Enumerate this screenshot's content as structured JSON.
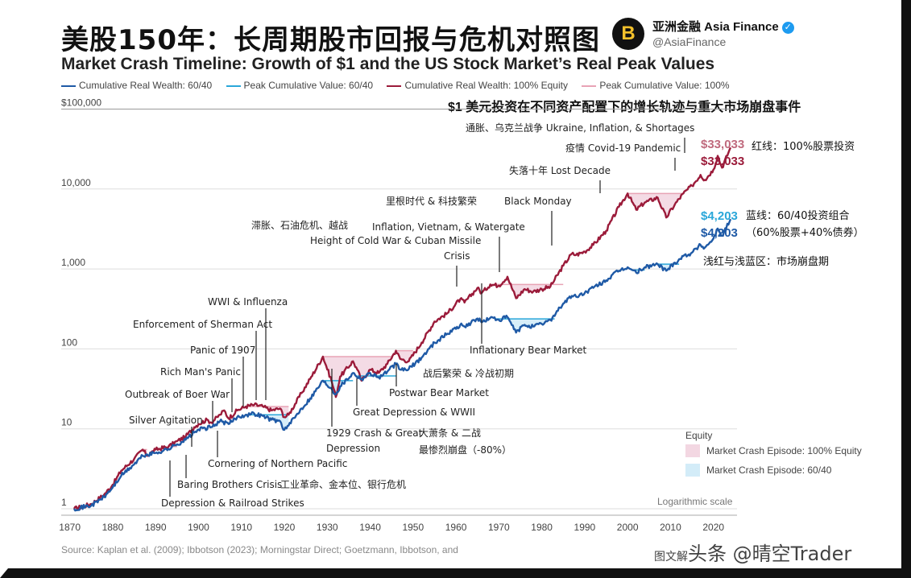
{
  "header": {
    "cn_title": "美股150年：长周期股市回报与危机对照图",
    "en_title": "Market Crash Timeline: Growth of $1 and the US Stock Market’s Real Peak Values",
    "subtitle": "$1 美元投资在不同资产配置下的增长轨迹与重大市场崩盘事件",
    "brand_name": "亚洲金融 Asia Finance",
    "brand_handle": "@AsiaFinance",
    "verified_icon": "verified-check-icon",
    "logo_letter": "B"
  },
  "legend": {
    "items": [
      {
        "label": "Cumulative Real Wealth: 60/40",
        "color": "#1f5aa6"
      },
      {
        "label": "Peak Cumulative Value: 60/40",
        "color": "#2aa7d9"
      },
      {
        "label": "Cumulative Real Wealth: 100% Equity",
        "color": "#9b1b3a"
      },
      {
        "label": "Peak Cumulative Value: 100%",
        "color": "#e8a3b5"
      }
    ]
  },
  "chart_data": {
    "type": "line",
    "y_scale": "log",
    "ylim": [
      1,
      100000
    ],
    "xlim": [
      1868,
      2025
    ],
    "y_ticks": [
      "$100,000",
      "10,000",
      "1,000",
      "100",
      "10",
      "1"
    ],
    "x_ticks": [
      "1870",
      "1880",
      "1890",
      "1900",
      "1910",
      "1920",
      "1930",
      "1940",
      "1950",
      "1960",
      "1970",
      "1980",
      "1990",
      "2000",
      "2010",
      "2020"
    ],
    "scale_note": "Logarithmic scale",
    "series": [
      {
        "name": "Cumulative Real Wealth: 100% Equity",
        "color": "#9b1b3a",
        "points": [
          [
            1871,
            1
          ],
          [
            1875,
            1.15
          ],
          [
            1878,
            1.5
          ],
          [
            1880,
            2.0
          ],
          [
            1882,
            3.0
          ],
          [
            1885,
            4.2
          ],
          [
            1887,
            5.5
          ],
          [
            1888,
            4.6
          ],
          [
            1890,
            5.5
          ],
          [
            1893,
            6.0
          ],
          [
            1895,
            7.0
          ],
          [
            1897,
            8.0
          ],
          [
            1899,
            10.5
          ],
          [
            1900,
            11.5
          ],
          [
            1902,
            13
          ],
          [
            1903,
            12
          ],
          [
            1905,
            15
          ],
          [
            1906,
            17
          ],
          [
            1907,
            13.5
          ],
          [
            1909,
            17
          ],
          [
            1911,
            19
          ],
          [
            1913,
            20
          ],
          [
            1915,
            19
          ],
          [
            1917,
            17
          ],
          [
            1919,
            18
          ],
          [
            1920,
            14
          ],
          [
            1921,
            15
          ],
          [
            1924,
            28
          ],
          [
            1926,
            42
          ],
          [
            1929,
            80
          ],
          [
            1931,
            40
          ],
          [
            1932,
            25
          ],
          [
            1933,
            45
          ],
          [
            1936,
            70
          ],
          [
            1937,
            55
          ],
          [
            1938,
            40
          ],
          [
            1940,
            55
          ],
          [
            1942,
            50
          ],
          [
            1944,
            65
          ],
          [
            1946,
            95
          ],
          [
            1947,
            75
          ],
          [
            1949,
            70
          ],
          [
            1952,
            120
          ],
          [
            1955,
            220
          ],
          [
            1958,
            280
          ],
          [
            1961,
            420
          ],
          [
            1962,
            380
          ],
          [
            1965,
            580
          ],
          [
            1966,
            500
          ],
          [
            1968,
            640
          ],
          [
            1970,
            620
          ],
          [
            1972,
            800
          ],
          [
            1974,
            430
          ],
          [
            1976,
            560
          ],
          [
            1978,
            520
          ],
          [
            1980,
            560
          ],
          [
            1982,
            600
          ],
          [
            1985,
            1100
          ],
          [
            1987,
            1550
          ],
          [
            1988,
            1500
          ],
          [
            1990,
            1650
          ],
          [
            1992,
            2000
          ],
          [
            1995,
            3000
          ],
          [
            1998,
            6000
          ],
          [
            2000,
            8800
          ],
          [
            2002,
            5500
          ],
          [
            2004,
            6800
          ],
          [
            2007,
            7800
          ],
          [
            2009,
            4400
          ],
          [
            2011,
            6400
          ],
          [
            2013,
            8800
          ],
          [
            2015,
            11000
          ],
          [
            2017,
            15000
          ],
          [
            2018,
            13000
          ],
          [
            2020,
            17500
          ],
          [
            2021,
            26000
          ],
          [
            2022,
            18500
          ],
          [
            2024,
            33033
          ]
        ]
      },
      {
        "name": "Cumulative Real Wealth: 60/40",
        "color": "#1f5aa6",
        "points": [
          [
            1871,
            1
          ],
          [
            1875,
            1.1
          ],
          [
            1878,
            1.4
          ],
          [
            1880,
            1.85
          ],
          [
            1882,
            2.6
          ],
          [
            1885,
            3.6
          ],
          [
            1887,
            4.6
          ],
          [
            1890,
            5.0
          ],
          [
            1893,
            5.6
          ],
          [
            1895,
            6.4
          ],
          [
            1897,
            7.3
          ],
          [
            1899,
            9.0
          ],
          [
            1900,
            9.8
          ],
          [
            1903,
            10.5
          ],
          [
            1905,
            12.5
          ],
          [
            1907,
            11.5
          ],
          [
            1909,
            14
          ],
          [
            1911,
            15
          ],
          [
            1913,
            15.5
          ],
          [
            1915,
            14.5
          ],
          [
            1917,
            13
          ],
          [
            1919,
            12.5
          ],
          [
            1920,
            9.7
          ],
          [
            1921,
            11
          ],
          [
            1924,
            18
          ],
          [
            1926,
            24
          ],
          [
            1929,
            40
          ],
          [
            1931,
            32
          ],
          [
            1932,
            27
          ],
          [
            1933,
            34
          ],
          [
            1936,
            50
          ],
          [
            1938,
            42
          ],
          [
            1940,
            50
          ],
          [
            1942,
            44
          ],
          [
            1944,
            52
          ],
          [
            1946,
            65
          ],
          [
            1947,
            55
          ],
          [
            1949,
            56
          ],
          [
            1952,
            78
          ],
          [
            1955,
            120
          ],
          [
            1958,
            155
          ],
          [
            1961,
            200
          ],
          [
            1962,
            190
          ],
          [
            1965,
            240
          ],
          [
            1966,
            215
          ],
          [
            1968,
            245
          ],
          [
            1970,
            230
          ],
          [
            1972,
            250
          ],
          [
            1974,
            160
          ],
          [
            1976,
            200
          ],
          [
            1978,
            190
          ],
          [
            1980,
            205
          ],
          [
            1982,
            230
          ],
          [
            1985,
            370
          ],
          [
            1987,
            460
          ],
          [
            1988,
            450
          ],
          [
            1990,
            500
          ],
          [
            1992,
            580
          ],
          [
            1995,
            720
          ],
          [
            1998,
            950
          ],
          [
            2000,
            1050
          ],
          [
            2002,
            900
          ],
          [
            2004,
            1050
          ],
          [
            2007,
            1150
          ],
          [
            2009,
            950
          ],
          [
            2011,
            1200
          ],
          [
            2013,
            1450
          ],
          [
            2015,
            1600
          ],
          [
            2017,
            2000
          ],
          [
            2018,
            1850
          ],
          [
            2020,
            2400
          ],
          [
            2021,
            3200
          ],
          [
            2022,
            2600
          ],
          [
            2024,
            4203
          ]
        ]
      }
    ],
    "crash_episodes_equity": [
      [
        1887,
        1888
      ],
      [
        1893,
        1895
      ],
      [
        1907,
        1908
      ],
      [
        1911,
        1921
      ],
      [
        1929,
        1945
      ],
      [
        1946,
        1950
      ],
      [
        1968,
        1985
      ],
      [
        2000,
        2013
      ]
    ],
    "crash_episodes_6040": [
      [
        1911,
        1921
      ],
      [
        1929,
        1936
      ],
      [
        1937,
        1946
      ],
      [
        1969,
        1983
      ],
      [
        2001,
        2004
      ],
      [
        2007,
        2012
      ]
    ],
    "end_labels": {
      "equity_value_top": "$33,033",
      "equity_value": "$33,033",
      "equity_note": "红线：100%股票投资",
      "balanced_value_top": "$4,203",
      "balanced_value": "$4,203",
      "balanced_note": "蓝线：60/40投资组合",
      "balanced_note2": "（60%股票+40%债券）",
      "crash_note": "浅红与浅蓝区：市场崩盘期"
    },
    "annotations": [
      {
        "text": "Depression & Railroad Strikes",
        "x": 1873
      },
      {
        "text": "Baring Brothers Crisis",
        "x": 1890
      },
      {
        "text": "工业革命、金本位、银行危机",
        "x": 1890
      },
      {
        "text": "Silver Agitation",
        "x": 1893
      },
      {
        "text": "Cornering of Northern Pacific",
        "x": 1901
      },
      {
        "text": "Outbreak of Boer War",
        "x": 1899
      },
      {
        "text": "Rich Man's Panic",
        "x": 1903
      },
      {
        "text": "Panic of 1907",
        "x": 1907
      },
      {
        "text": "Enforcement of Sherman Act",
        "x": 1911
      },
      {
        "text": "WWI & Influenza",
        "x": 1917
      },
      {
        "text": "1929 Crash & Great",
        "x": 1929
      },
      {
        "text": "Depression",
        "x": 1929
      },
      {
        "text": "Great Depression & WWII",
        "x": 1937
      },
      {
        "text": "大萧条 & 二战",
        "x": 1937
      },
      {
        "text": "最惨烈崩盘（-80%）",
        "x": 1937
      },
      {
        "text": "Postwar Bear Market",
        "x": 1946
      },
      {
        "text": "战后繁荣 & 冷战初期",
        "x": 1950
      },
      {
        "text": "Height of Cold War & Cuban Missile",
        "x": 1962
      },
      {
        "text": "Crisis",
        "x": 1962
      },
      {
        "text": "滞胀、石油危机、越战",
        "x": 1962
      },
      {
        "text": "Inflation, Vietnam, & Watergate",
        "x": 1973
      },
      {
        "text": "Inflationary Bear Market",
        "x": 1973
      },
      {
        "text": "里根时代 & 科技繁荣",
        "x": 1987
      },
      {
        "text": "Black Monday",
        "x": 1987
      },
      {
        "text": "失落十年 Lost Decade",
        "x": 2000
      },
      {
        "text": "疫情 Covid-19 Pandemic",
        "x": 2020
      },
      {
        "text": "通胀、乌克兰战争 Ukraine, Inflation, & Shortages",
        "x": 2022
      }
    ],
    "legend_box": {
      "title": "Equity",
      "items": [
        {
          "label": "Market Crash Episode: 100% Equity",
          "color": "#f3d7e2"
        },
        {
          "label": "Market Crash Episode: 60/40",
          "color": "#d3ecf8"
        }
      ]
    }
  },
  "footer": {
    "source": "Source: Kaplan et al. (2009); Ibbotson (2023); Morningstar Direct; Goetzmann, Ibbotson, and",
    "watermark_prefix": "图文解",
    "watermark": "头条 @晴空Trader"
  }
}
